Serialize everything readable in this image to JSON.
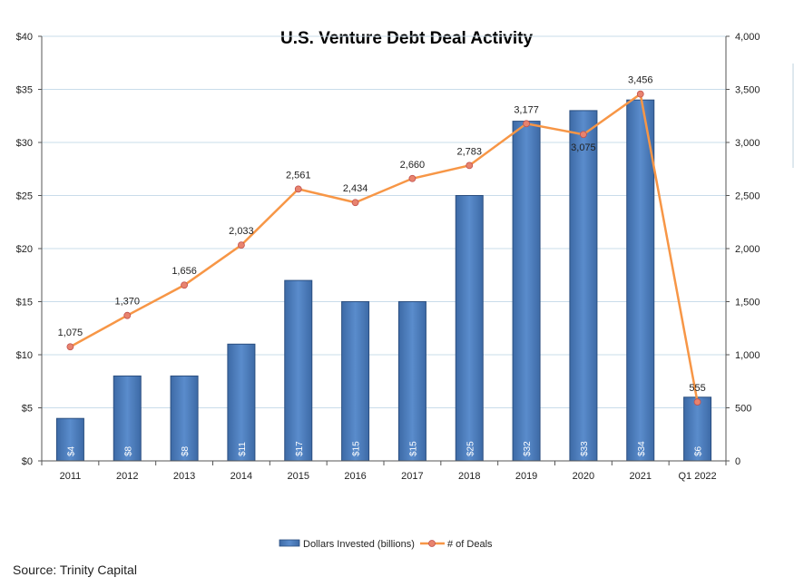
{
  "source_text": "Source: Trinity Capital",
  "chart_data": {
    "type": "bar",
    "title": "U.S. Venture Debt Deal Activity",
    "categories": [
      "2011",
      "2012",
      "2013",
      "2014",
      "2015",
      "2016",
      "2017",
      "2018",
      "2019",
      "2020",
      "2021",
      "Q1 2022"
    ],
    "series": [
      {
        "name": "Dollars Invested (billions)",
        "type": "bar",
        "axis": "left",
        "color": "#4F81BD",
        "values": [
          4,
          8,
          8,
          11,
          17,
          15,
          15,
          25,
          32,
          33,
          34,
          6
        ],
        "labels": [
          "$4",
          "$8",
          "$8",
          "$11",
          "$17",
          "$15",
          "$15",
          "$25",
          "$32",
          "$33",
          "$34",
          "$6"
        ]
      },
      {
        "name": "# of Deals",
        "type": "line",
        "axis": "right",
        "color": "#F79646",
        "marker_fill": "#E8836E",
        "values": [
          1075,
          1370,
          1656,
          2033,
          2561,
          2434,
          2660,
          2783,
          3177,
          3075,
          3456,
          555
        ],
        "labels": [
          "1,075",
          "1,370",
          "1,656",
          "2,033",
          "2,561",
          "2,434",
          "2,660",
          "2,783",
          "3,177",
          "3,075",
          "3,456",
          "555"
        ]
      }
    ],
    "y_left": {
      "ylim": [
        0,
        40
      ],
      "ticks": [
        "$0",
        "$5",
        "$10",
        "$15",
        "$20",
        "$25",
        "$30",
        "$35",
        "$40"
      ]
    },
    "y_right": {
      "ylim": [
        0,
        4000
      ],
      "ticks": [
        "0",
        "500",
        "1,000",
        "1,500",
        "2,000",
        "2,500",
        "3,000",
        "3,500",
        "4,000"
      ]
    },
    "grid": true,
    "legend_position": "bottom"
  }
}
